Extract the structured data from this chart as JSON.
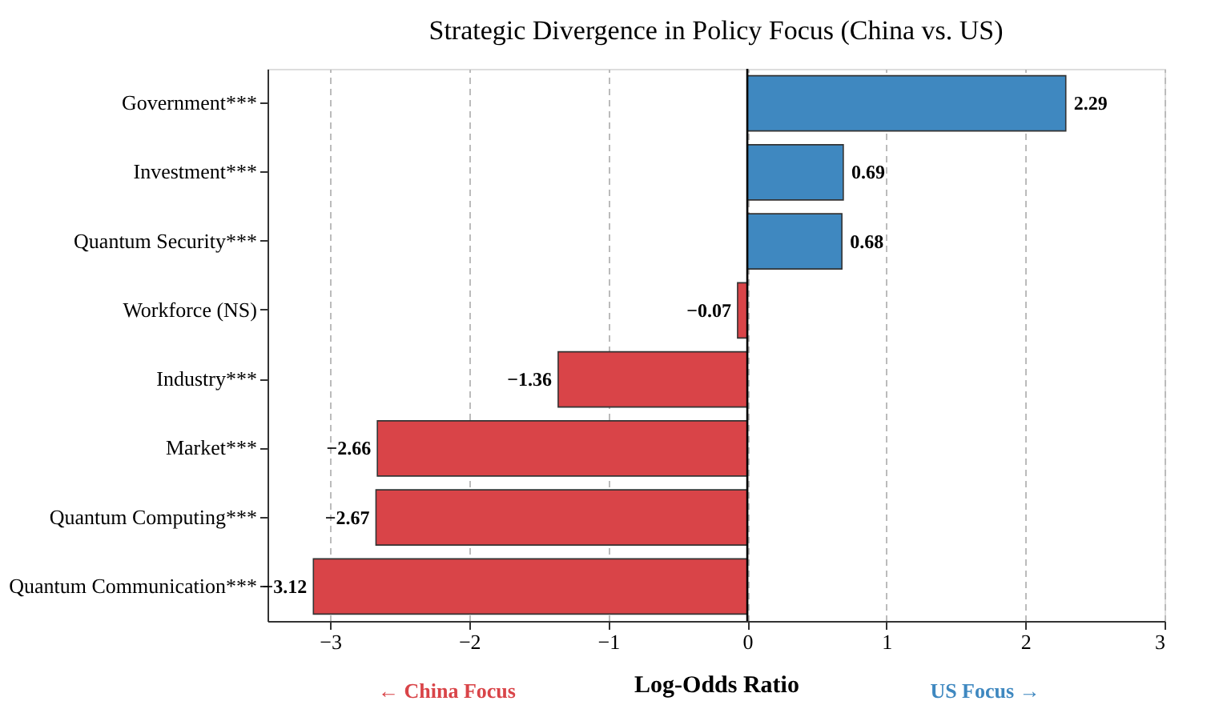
{
  "chart_data": {
    "type": "bar",
    "orientation": "horizontal",
    "title": "Strategic Divergence in Policy Focus (China vs. US)",
    "xlabel": "Log-Odds Ratio",
    "categories": [
      "Government***",
      "Investment***",
      "Quantum Security***",
      "Workforce (NS)",
      "Industry***",
      "Market***",
      "Quantum Computing***",
      "Quantum Communication***"
    ],
    "values": [
      2.29,
      0.69,
      0.68,
      -0.07,
      -1.36,
      -2.66,
      -2.67,
      -3.12
    ],
    "colors": [
      "#3f88c0",
      "#3f88c0",
      "#3f88c0",
      "#d94448",
      "#d94448",
      "#d94448",
      "#d94448",
      "#d94448"
    ],
    "data_labels": true,
    "xlim": [
      -3.45,
      3
    ],
    "xticks": [
      -3,
      -2,
      -1,
      0,
      1,
      2,
      3
    ],
    "grid": "x",
    "ref_lines": [
      {
        "axis": "x",
        "value": 0,
        "color": "#000000",
        "line_style": "solid"
      }
    ],
    "annotations": [
      "← China Focus",
      "US Focus →"
    ]
  }
}
